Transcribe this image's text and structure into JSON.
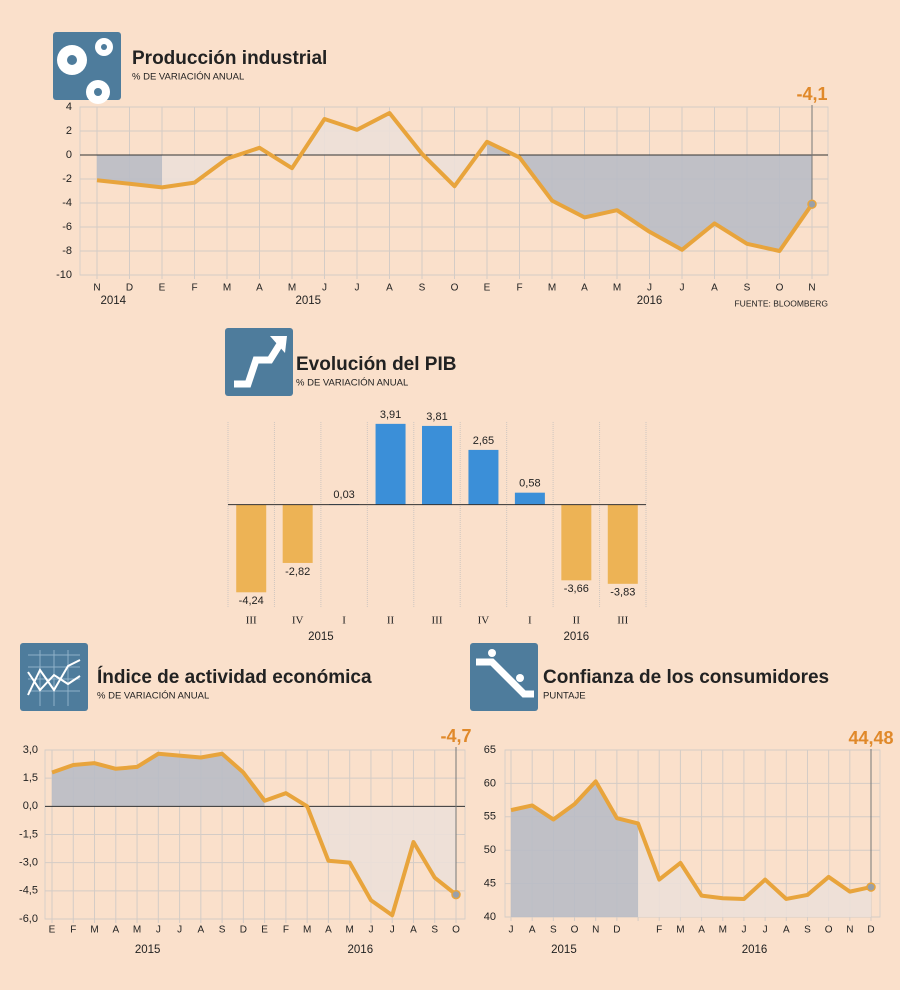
{
  "chart_data": [
    {
      "type": "line",
      "title": "Producción industrial",
      "subtitle": "% DE VARIACIÓN ANUAL",
      "categories": [
        "N",
        "D",
        "E",
        "F",
        "M",
        "A",
        "M",
        "J",
        "J",
        "A",
        "S",
        "O",
        "E",
        "F",
        "M",
        "A",
        "M",
        "J",
        "J",
        "A",
        "S",
        "O",
        "N"
      ],
      "values": [
        -2.1,
        -2.4,
        -2.7,
        -2.3,
        -0.3,
        0.6,
        -1.1,
        3.0,
        2.1,
        3.5,
        0.1,
        -2.6,
        1.1,
        -0.2,
        -3.8,
        -5.2,
        -4.6,
        -6.4,
        -7.9,
        -5.7,
        -7.4,
        -8.0,
        -4.1
      ],
      "color": "#e8a43c",
      "ylim": [
        -10,
        4
      ],
      "yticks": [
        -10,
        -8,
        -6,
        -4,
        -2,
        0,
        2,
        4
      ],
      "years": [
        {
          "label": "2014",
          "from": 0,
          "to": 1,
          "fill": "#b9bcc5"
        },
        {
          "label": "2015",
          "from": 2,
          "to": 11,
          "fill": "#ece0d8"
        },
        {
          "label": "2016",
          "from": 12,
          "to": 22,
          "fill": "#b9bcc5"
        }
      ],
      "annotation": "-4,1",
      "source": "FUENTE: BLOOMBERG"
    },
    {
      "type": "bar",
      "title": "Evolución del PIB",
      "subtitle": "% DE VARIACIÓN ANUAL",
      "categories": [
        "III",
        "IV",
        "I",
        "II",
        "III",
        "IV",
        "I",
        "II",
        "III"
      ],
      "values": [
        -4.24,
        -2.82,
        0.03,
        3.91,
        3.81,
        2.65,
        0.58,
        -3.66,
        -3.83
      ],
      "value_labels": [
        "-4,24",
        "-2,82",
        "0,03",
        "3,91",
        "3,81",
        "2,65",
        "0,58",
        "-3,66",
        "-3,83"
      ],
      "positive_color": "#3b8fd8",
      "negative_color": "#edb355",
      "ylim": [
        -5,
        4
      ],
      "years": [
        {
          "label": "2015",
          "from": 0,
          "to": 3
        },
        {
          "label": "2016",
          "from": 6,
          "to": 8
        }
      ]
    },
    {
      "type": "line",
      "title": "Índice de actividad económica",
      "subtitle": "% DE VARIACIÓN ANUAL",
      "categories": [
        "E",
        "F",
        "M",
        "A",
        "M",
        "J",
        "J",
        "A",
        "S",
        "D",
        "E",
        "F",
        "M",
        "A",
        "M",
        "J",
        "J",
        "A",
        "S",
        "O"
      ],
      "values": [
        1.8,
        2.2,
        2.3,
        2.0,
        2.1,
        2.8,
        2.7,
        2.6,
        2.8,
        1.8,
        0.3,
        0.7,
        0.0,
        -2.9,
        -3.0,
        -5.0,
        -5.8,
        -1.9,
        -3.8,
        -4.7
      ],
      "color": "#e8a43c",
      "ylim": [
        -6,
        3
      ],
      "yticks": [
        {
          "value": -6,
          "label": "-6,0"
        },
        {
          "value": -4.5,
          "label": "-4,5"
        },
        {
          "value": -3,
          "label": "-3,0"
        },
        {
          "value": -1.5,
          "label": "-1,5"
        },
        {
          "value": 0,
          "label": "0,0"
        },
        {
          "value": 1.5,
          "label": "1,5"
        },
        {
          "value": 3,
          "label": "3,0"
        }
      ],
      "years": [
        {
          "label": "2015",
          "from": 0,
          "to": 9,
          "fill": "#b9bcc5"
        },
        {
          "label": "2016",
          "from": 10,
          "to": 19,
          "fill": "#ece0d8"
        }
      ],
      "annotation": "-4,7"
    },
    {
      "type": "line",
      "title": "Confianza de los consumidores",
      "subtitle": "PUNTAJE",
      "categories": [
        "J",
        "A",
        "S",
        "O",
        "N",
        "D",
        null,
        "F",
        "M",
        "A",
        "M",
        "J",
        "J",
        "A",
        "S",
        "O",
        "N",
        "D"
      ],
      "values": [
        56.0,
        56.7,
        54.6,
        56.9,
        60.3,
        54.8,
        54.0,
        45.6,
        48.1,
        43.2,
        42.8,
        42.7,
        45.6,
        42.7,
        43.3,
        46.0,
        43.8,
        44.48
      ],
      "color": "#e8a43c",
      "ylim": [
        40,
        65
      ],
      "yticks": [
        40,
        45,
        50,
        55,
        60,
        65
      ],
      "years": [
        {
          "label": "2015",
          "from": 0,
          "to": 5,
          "fill": "#b9bcc5"
        },
        {
          "label": "2016",
          "from": 6,
          "to": 17,
          "fill": "#ece0d8"
        }
      ],
      "annotation": "44,48"
    }
  ]
}
